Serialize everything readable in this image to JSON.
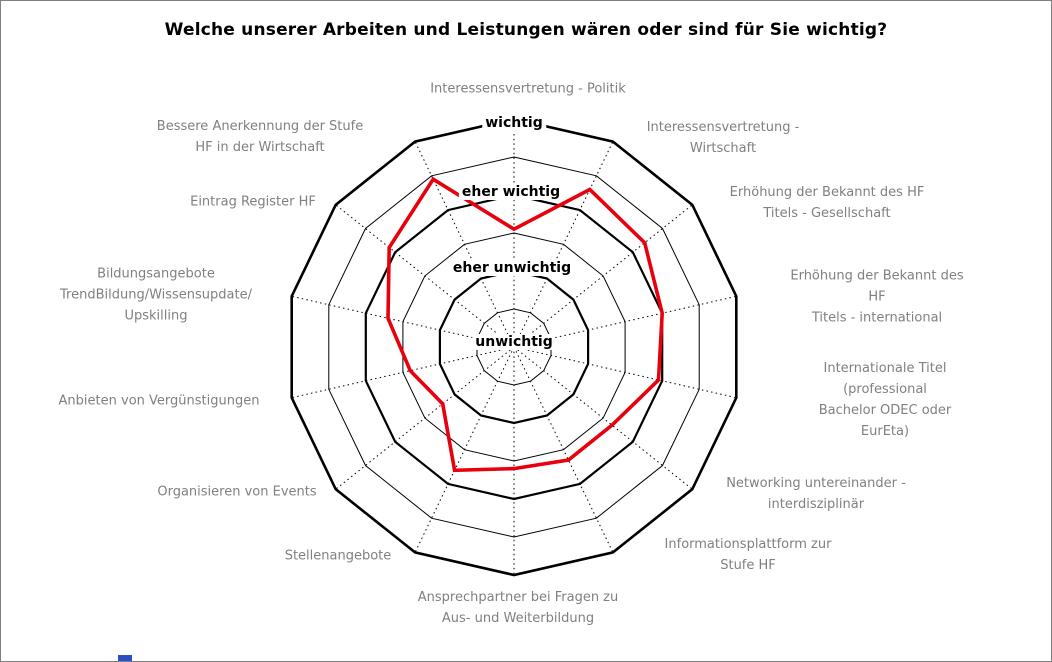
{
  "chart_data": {
    "type": "radar",
    "title": "Welche unserer Arbeiten und Leistungen wären oder sind für Sie wichtig?",
    "categories": [
      "Interessensvertretung - Politik",
      "Interessensvertretung -\nWirtschaft",
      "Erhöhung der Bekannt des HF\nTitels - Gesellschaft",
      "Erhöhung der Bekannt des HF\nTitels - international",
      "Internationale Titel (professional\nBachelor ODEC oder EurEta)",
      "Networking untereinander -\ninterdisziplinär",
      "Informationsplattform zur\nStufe HF",
      "Ansprechpartner bei Fragen zu\nAus- und Weiterbildung",
      "Stellenangebote",
      "Organisieren von Events",
      "Anbieten von Vergünstigungen",
      "Bildungsangebote\nTrendBildung/Wissensupdate/\nUpskilling",
      "Eintrag Register HF",
      "Bessere Anerkennung der Stufe\nHF in der Wirtschaft"
    ],
    "scale": {
      "min": 1,
      "max": 4,
      "levels": [
        {
          "value": 1,
          "label": "unwichtig"
        },
        {
          "value": 2,
          "label": "eher unwichtig"
        },
        {
          "value": 3,
          "label": "eher wichtig"
        },
        {
          "value": 4,
          "label": "wichtig"
        }
      ]
    },
    "grid": {
      "shape": "polygon",
      "spoke_style": "dotted",
      "major_levels": [
        2,
        3,
        4
      ],
      "minor_levels": [
        1.5,
        2.5,
        3.5
      ]
    },
    "series": [
      {
        "color": "#e8000d",
        "values": [
          2.55,
          3.3,
          3.2,
          3.0,
          2.95,
          2.65,
          2.65,
          2.6,
          2.8,
          2.2,
          2.4,
          2.7,
          3.1,
          3.45
        ]
      }
    ]
  }
}
